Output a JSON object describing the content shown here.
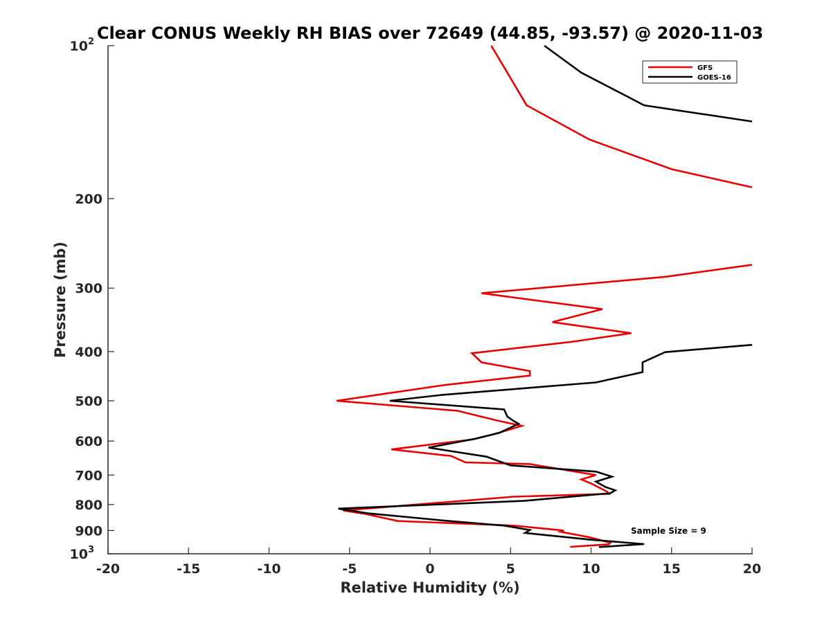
{
  "chart_data": {
    "type": "line",
    "title": "Clear CONUS Weekly RH BIAS over 72649 (44.85, -93.57) @ 2020-11-03",
    "xlabel": "Relative Humidity (%)",
    "ylabel": "Pressure (mb)",
    "xlim": [
      -20,
      20
    ],
    "ylim": [
      100,
      1000
    ],
    "y_scale": "log",
    "y_reversed": true,
    "x_ticks": [
      "-20",
      "-15",
      "-10",
      "-5",
      "0",
      "5",
      "10",
      "15",
      "20"
    ],
    "y_ticks": [
      {
        "value": 100,
        "base": "10",
        "exp": "2"
      },
      {
        "value": 200,
        "base": "200",
        "exp": ""
      },
      {
        "value": 300,
        "base": "300",
        "exp": ""
      },
      {
        "value": 400,
        "base": "400",
        "exp": ""
      },
      {
        "value": 500,
        "base": "500",
        "exp": ""
      },
      {
        "value": 600,
        "base": "600",
        "exp": ""
      },
      {
        "value": 700,
        "base": "700",
        "exp": ""
      },
      {
        "value": 800,
        "base": "800",
        "exp": ""
      },
      {
        "value": 900,
        "base": "900",
        "exp": ""
      },
      {
        "value": 1000,
        "base": "10",
        "exp": "3"
      }
    ],
    "grid": false,
    "legend_position": "top-right",
    "annotation": "Sample Size = 9",
    "series": [
      {
        "name": "GFS",
        "color": "#e60000",
        "segments": [
          [
            [
              3.8,
              100
            ],
            [
              4.8,
              113
            ],
            [
              6.0,
              131
            ],
            [
              9.9,
              153
            ],
            [
              15.0,
              175
            ],
            [
              20,
              190
            ]
          ],
          [
            [
              20,
              270
            ],
            [
              14.6,
              285
            ],
            [
              3.2,
              307
            ],
            [
              10.7,
              330
            ],
            [
              7.6,
              350
            ],
            [
              12.5,
              368
            ],
            [
              8.7,
              383
            ],
            [
              2.6,
              403
            ],
            [
              3.2,
              420
            ],
            [
              6.2,
              437
            ],
            [
              6.2,
              446
            ],
            [
              1.0,
              465
            ],
            [
              -5.8,
              500
            ],
            [
              1.7,
              523
            ],
            [
              4.1,
              546
            ],
            [
              5.7,
              560
            ],
            [
              4.1,
              580
            ],
            [
              2.6,
              596
            ],
            [
              0.3,
              608
            ],
            [
              -2.4,
              623
            ],
            [
              1.3,
              642
            ],
            [
              2.2,
              661
            ],
            [
              6.2,
              666
            ],
            [
              10.3,
              700
            ],
            [
              9.4,
              714
            ],
            [
              10.0,
              727
            ],
            [
              11.0,
              755
            ],
            [
              11.1,
              762
            ],
            [
              5.2,
              772
            ],
            [
              -5.4,
              822
            ],
            [
              -4.0,
              835
            ],
            [
              -2.0,
              862
            ],
            [
              5.2,
              880
            ],
            [
              8.3,
              900
            ],
            [
              8.1,
              905
            ],
            [
              9.9,
              928
            ],
            [
              11.2,
              951
            ],
            [
              11.1,
              958
            ],
            [
              8.7,
              969
            ]
          ]
        ]
      },
      {
        "name": "GOES-16",
        "color": "#000000",
        "segments": [
          [
            [
              7.1,
              100
            ],
            [
              9.4,
              113
            ],
            [
              13.3,
              131
            ],
            [
              20,
              141
            ]
          ],
          [
            [
              20,
              388
            ],
            [
              14.6,
              401
            ],
            [
              13.2,
              420
            ],
            [
              13.2,
              439
            ],
            [
              10.3,
              460
            ],
            [
              0.7,
              487
            ],
            [
              -2.5,
              500
            ],
            [
              4.6,
              520
            ],
            [
              4.8,
              537
            ],
            [
              5.2,
              548
            ],
            [
              5.5,
              555
            ],
            [
              4.3,
              578
            ],
            [
              2.9,
              593
            ],
            [
              -0.1,
              618
            ],
            [
              3.5,
              644
            ],
            [
              5.0,
              670
            ],
            [
              10.3,
              689
            ],
            [
              11.3,
              705
            ],
            [
              10.3,
              721
            ],
            [
              10.9,
              739
            ],
            [
              11.5,
              750
            ],
            [
              11.2,
              760
            ],
            [
              5.8,
              787
            ],
            [
              -5.7,
              815
            ],
            [
              -3.9,
              832
            ],
            [
              1.0,
              861
            ],
            [
              4.6,
              880
            ],
            [
              6.2,
              898
            ],
            [
              5.9,
              910
            ],
            [
              10.1,
              939
            ],
            [
              13.3,
              957
            ],
            [
              10.5,
              970
            ]
          ]
        ]
      }
    ]
  }
}
